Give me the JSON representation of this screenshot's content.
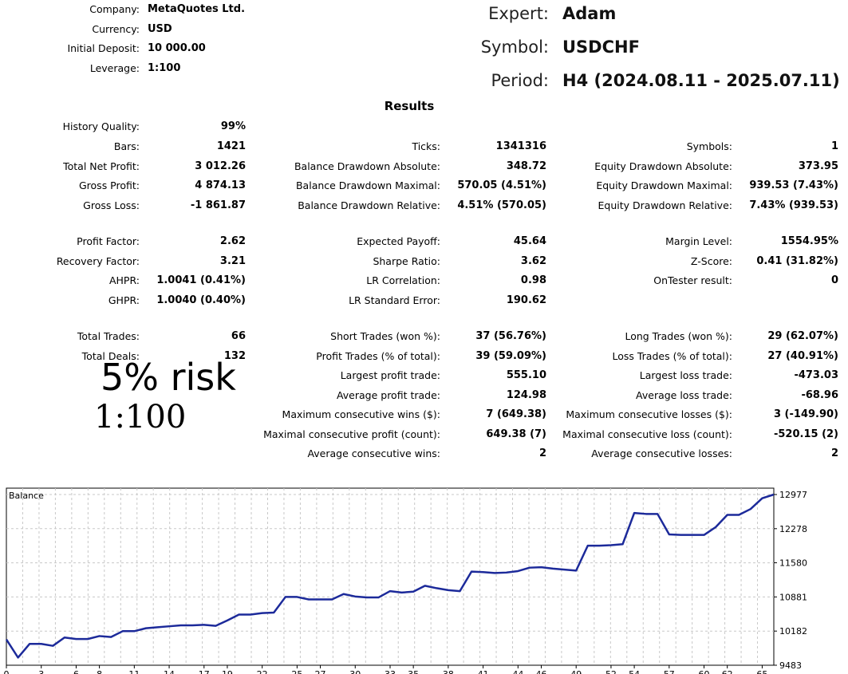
{
  "header": {
    "left": [
      {
        "label": "Company:",
        "value": "MetaQuotes Ltd."
      },
      {
        "label": "Currency:",
        "value": "USD"
      },
      {
        "label": "Initial Deposit:",
        "value": "10 000.00"
      },
      {
        "label": "Leverage:",
        "value": "1:100"
      }
    ],
    "right": [
      {
        "label": "Expert:",
        "value": "Adam"
      },
      {
        "label": "Symbol:",
        "value": "USDCHF"
      },
      {
        "label": "Period:",
        "value": "H4 (2024.08.11 - 2025.07.11)"
      }
    ]
  },
  "results_title": "Results",
  "col1": [
    {
      "label": "History Quality:",
      "value": "99%"
    },
    {
      "label": "Bars:",
      "value": "1421"
    },
    {
      "label": "Total Net Profit:",
      "value": "3 012.26"
    },
    {
      "label": "Gross Profit:",
      "value": "4 874.13"
    },
    {
      "label": "Gross Loss:",
      "value": "-1 861.87"
    },
    {
      "label": "Profit Factor:",
      "value": "2.62"
    },
    {
      "label": "Recovery Factor:",
      "value": "3.21"
    },
    {
      "label": "AHPR:",
      "value": "1.0041 (0.41%)"
    },
    {
      "label": "GHPR:",
      "value": "1.0040 (0.40%)"
    },
    {
      "label": "Total Trades:",
      "value": "66"
    },
    {
      "label": "Total Deals:",
      "value": "132"
    }
  ],
  "col2": [
    {
      "label": "Ticks:",
      "value": "1341316"
    },
    {
      "label": "Balance Drawdown Absolute:",
      "value": "348.72"
    },
    {
      "label": "Balance Drawdown Maximal:",
      "value": "570.05 (4.51%)"
    },
    {
      "label": "Balance Drawdown Relative:",
      "value": "4.51% (570.05)"
    },
    {
      "label": "Expected Payoff:",
      "value": "45.64"
    },
    {
      "label": "Sharpe Ratio:",
      "value": "3.62"
    },
    {
      "label": "LR Correlation:",
      "value": "0.98"
    },
    {
      "label": "LR Standard Error:",
      "value": "190.62"
    },
    {
      "label": "Short Trades (won %):",
      "value": "37 (56.76%)"
    },
    {
      "label": "Profit Trades (% of total):",
      "value": "39 (59.09%)"
    },
    {
      "label": "Largest profit trade:",
      "value": "555.10"
    },
    {
      "label": "Average profit trade:",
      "value": "124.98"
    },
    {
      "label": "Maximum consecutive wins ($):",
      "value": "7 (649.38)"
    },
    {
      "label": "Maximal consecutive profit (count):",
      "value": "649.38 (7)"
    },
    {
      "label": "Average consecutive wins:",
      "value": "2"
    }
  ],
  "col3": [
    {
      "label": "Symbols:",
      "value": "1"
    },
    {
      "label": "Equity Drawdown Absolute:",
      "value": "373.95"
    },
    {
      "label": "Equity Drawdown Maximal:",
      "value": "939.53 (7.43%)"
    },
    {
      "label": "Equity Drawdown Relative:",
      "value": "7.43% (939.53)"
    },
    {
      "label": "Margin Level:",
      "value": "1554.95%"
    },
    {
      "label": "Z-Score:",
      "value": "0.41 (31.82%)"
    },
    {
      "label": "OnTester result:",
      "value": "0"
    },
    {
      "label": "Long Trades (won %):",
      "value": "29 (62.07%)"
    },
    {
      "label": "Loss Trades (% of total):",
      "value": "27 (40.91%)"
    },
    {
      "label": "Largest loss trade:",
      "value": "-473.03"
    },
    {
      "label": "Average loss trade:",
      "value": "-68.96"
    },
    {
      "label": "Maximum consecutive losses ($):",
      "value": "3 (-149.90)"
    },
    {
      "label": "Maximal consecutive loss (count):",
      "value": "-520.15 (2)"
    },
    {
      "label": "Average consecutive losses:",
      "value": "2"
    }
  ],
  "annotations": {
    "risk": "5% risk",
    "leverage": "1:100"
  },
  "chart_data": {
    "type": "line",
    "title": "Balance",
    "line_color": "#1c2a9a",
    "grid": true,
    "ylim": [
      9483,
      12977
    ],
    "yticks": [
      9483,
      10182,
      10881,
      11580,
      12278,
      12977
    ],
    "xlim": [
      0,
      66
    ],
    "xticks": [
      0,
      3,
      6,
      8,
      11,
      14,
      17,
      19,
      22,
      25,
      27,
      30,
      33,
      35,
      38,
      41,
      44,
      46,
      49,
      52,
      54,
      57,
      60,
      62,
      65
    ],
    "series": [
      {
        "x": [
          0,
          1,
          2,
          3,
          4,
          5,
          6,
          7,
          8,
          9,
          10,
          11,
          12,
          13,
          14,
          15,
          16,
          17,
          18,
          19,
          20,
          21,
          22,
          23,
          24,
          25,
          26,
          27,
          28,
          29,
          30,
          31,
          32,
          33,
          34,
          35,
          36,
          37,
          38,
          39,
          40,
          41,
          42,
          43,
          44,
          45,
          46,
          47,
          48,
          49,
          50,
          51,
          52,
          53,
          54,
          55,
          56,
          57,
          58,
          59,
          60,
          61,
          62,
          63,
          64,
          65,
          66
        ],
        "values": [
          10010,
          9640,
          9920,
          9920,
          9880,
          10050,
          10020,
          10020,
          10080,
          10060,
          10180,
          10180,
          10240,
          10260,
          10280,
          10300,
          10300,
          10310,
          10290,
          10400,
          10520,
          10520,
          10550,
          10560,
          10880,
          10880,
          10830,
          10830,
          10830,
          10940,
          10890,
          10870,
          10870,
          11000,
          10970,
          10990,
          11110,
          11060,
          11020,
          11000,
          11400,
          11390,
          11370,
          11380,
          11410,
          11480,
          11490,
          11460,
          11440,
          11420,
          11930,
          11930,
          11940,
          11960,
          12600,
          12580,
          12580,
          12160,
          12150,
          12150,
          12150,
          12310,
          12560,
          12560,
          12680,
          12900,
          12977
        ]
      }
    ]
  }
}
